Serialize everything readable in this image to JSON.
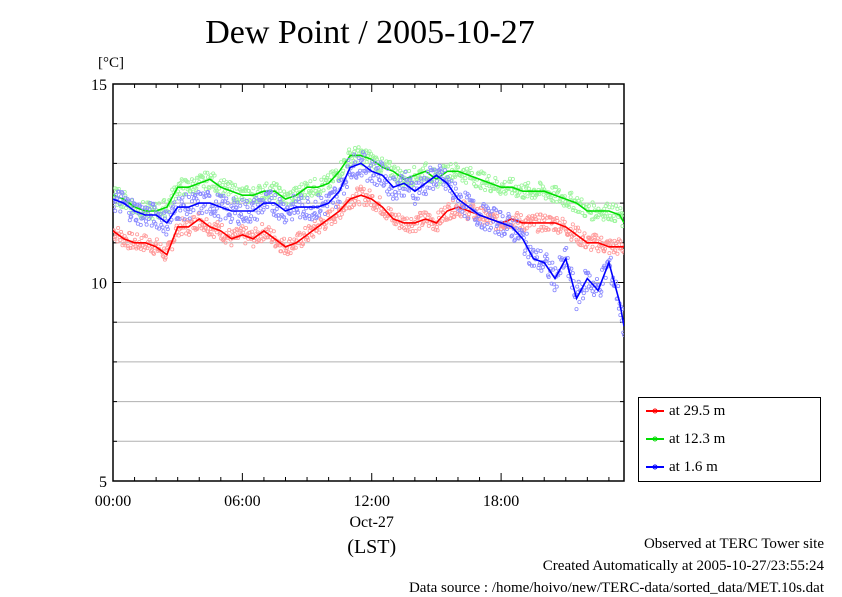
{
  "title": "Dew Point / 2005-10-27",
  "unit_label": "[°C]",
  "info": {
    "site": "Observed at TERC Tower site",
    "created": "Created Automatically at 2005-10-27/23:55:24",
    "source": "Data source : /home/hoivo/new/TERC-data/sorted_data/MET.10s.dat"
  },
  "colors": {
    "s29": "#ff0000",
    "s12": "#00dd00",
    "s1": "#0000ff",
    "s29_pts": "#ff9a9a",
    "s12_pts": "#9cf59c",
    "s1_pts": "#8a8aff"
  },
  "chart_data": {
    "type": "line",
    "xlabel": "(LST)",
    "ylabel": "[°C]",
    "xlim": [
      0,
      23.7
    ],
    "ylim": [
      5,
      15
    ],
    "x_ticks": [
      {
        "v": 0,
        "label": "00:00"
      },
      {
        "v": 6,
        "label": "06:00"
      },
      {
        "v": 12,
        "label": "12:00",
        "sub": "Oct-27"
      },
      {
        "v": 18,
        "label": "18:00"
      }
    ],
    "y_ticks": [
      {
        "v": 5,
        "label": "5"
      },
      {
        "v": 10,
        "label": "10"
      },
      {
        "v": 15,
        "label": "15"
      }
    ],
    "legend_position": "outside-right",
    "grid": true,
    "series": [
      {
        "name": "at 29.5 m",
        "key": "s29",
        "x": [
          0,
          0.5,
          1,
          1.5,
          2,
          2.5,
          3,
          3.5,
          4,
          4.5,
          5,
          5.5,
          6,
          6.5,
          7,
          7.5,
          8,
          8.5,
          9,
          9.5,
          10,
          10.5,
          11,
          11.5,
          12,
          12.5,
          13,
          13.5,
          14,
          14.5,
          15,
          15.5,
          16,
          16.5,
          17,
          17.5,
          18,
          18.5,
          19,
          19.5,
          20,
          20.5,
          21,
          21.5,
          22,
          22.5,
          23,
          23.5,
          23.7
        ],
        "values": [
          11.3,
          11.1,
          11.0,
          11.0,
          10.9,
          10.7,
          11.4,
          11.4,
          11.6,
          11.4,
          11.3,
          11.1,
          11.2,
          11.1,
          11.3,
          11.1,
          10.9,
          11.0,
          11.2,
          11.4,
          11.6,
          11.8,
          12.1,
          12.2,
          12.1,
          11.9,
          11.6,
          11.5,
          11.5,
          11.6,
          11.5,
          11.8,
          11.9,
          11.8,
          11.7,
          11.6,
          11.5,
          11.6,
          11.5,
          11.5,
          11.5,
          11.5,
          11.4,
          11.2,
          11.0,
          11.0,
          10.9,
          10.9,
          10.9
        ]
      },
      {
        "name": "at 12.3 m",
        "key": "s12",
        "x": [
          0,
          0.5,
          1,
          1.5,
          2,
          2.5,
          3,
          3.5,
          4,
          4.5,
          5,
          5.5,
          6,
          6.5,
          7,
          7.5,
          8,
          8.5,
          9,
          9.5,
          10,
          10.5,
          11,
          11.5,
          12,
          12.5,
          13,
          13.5,
          14,
          14.5,
          15,
          15.5,
          16,
          16.5,
          17,
          17.5,
          18,
          18.5,
          19,
          19.5,
          20,
          20.5,
          21,
          21.5,
          22,
          22.5,
          23,
          23.5,
          23.7
        ],
        "values": [
          12.2,
          12.1,
          11.9,
          11.8,
          11.8,
          11.9,
          12.4,
          12.4,
          12.5,
          12.6,
          12.4,
          12.3,
          12.2,
          12.2,
          12.3,
          12.3,
          12.1,
          12.2,
          12.4,
          12.4,
          12.5,
          12.8,
          13.2,
          13.2,
          13.1,
          12.9,
          12.8,
          12.6,
          12.7,
          12.8,
          12.6,
          12.8,
          12.8,
          12.7,
          12.6,
          12.5,
          12.4,
          12.4,
          12.3,
          12.3,
          12.3,
          12.2,
          12.1,
          12.0,
          11.8,
          11.8,
          11.8,
          11.7,
          11.5
        ]
      },
      {
        "name": "at 1.6 m",
        "key": "s1",
        "x": [
          0,
          0.5,
          1,
          1.5,
          2,
          2.5,
          3,
          3.5,
          4,
          4.5,
          5,
          5.5,
          6,
          6.5,
          7,
          7.5,
          8,
          8.5,
          9,
          9.5,
          10,
          10.5,
          11,
          11.5,
          12,
          12.5,
          13,
          13.5,
          14,
          14.5,
          15,
          15.5,
          16,
          16.5,
          17,
          17.5,
          18,
          18.5,
          19,
          19.5,
          20,
          20.5,
          21,
          21.5,
          22,
          22.5,
          23,
          23.5,
          23.7
        ],
        "values": [
          12.1,
          12.0,
          11.8,
          11.7,
          11.7,
          11.5,
          11.9,
          11.9,
          12.0,
          12.0,
          11.9,
          11.8,
          11.8,
          11.8,
          12.0,
          12.0,
          11.8,
          11.9,
          11.9,
          11.9,
          12.0,
          12.3,
          12.9,
          13.0,
          12.8,
          12.7,
          12.4,
          12.5,
          12.3,
          12.5,
          12.7,
          12.5,
          12.1,
          11.9,
          11.7,
          11.6,
          11.5,
          11.4,
          11.1,
          10.6,
          10.5,
          10.1,
          10.6,
          9.6,
          10.1,
          9.8,
          10.5,
          9.5,
          8.9
        ]
      }
    ]
  }
}
